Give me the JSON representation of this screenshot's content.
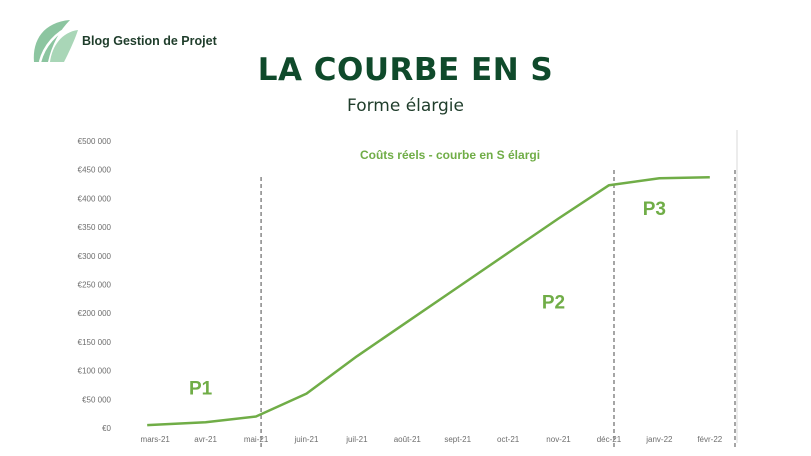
{
  "brand": {
    "name": "Blog Gestion de Projet",
    "logo_icon": "leaf-logo-icon",
    "color": "#8cc5a0"
  },
  "header": {
    "title": "LA COURBE EN S",
    "subtitle": "Forme élargie"
  },
  "colors": {
    "line": "#70ad47",
    "title": "#0f4a2b",
    "axis_text": "#6d6d6d",
    "divider": "#7f7f7f"
  },
  "chart_data": {
    "type": "line",
    "title": "Coûts réels - courbe en S élargi",
    "categories": [
      "mars-21",
      "avr-21",
      "mai-21",
      "juin-21",
      "juil-21",
      "août-21",
      "sept-21",
      "oct-21",
      "nov-21",
      "déc-21",
      "janv-22",
      "févr-22"
    ],
    "series": [
      {
        "values": [
          5000,
          10000,
          20000,
          60000,
          125000,
          185000,
          245000,
          305000,
          365000,
          423000,
          435000,
          437000
        ]
      }
    ],
    "y_ticks": [
      "€0",
      "€50 000",
      "€100 000",
      "€150 000",
      "€200 000",
      "€250 000",
      "€300 000",
      "€350 000",
      "€400 000",
      "€450 000",
      "€500 000"
    ],
    "ylim": [
      0,
      500000
    ],
    "grid": false,
    "xlabel": "",
    "ylabel": "",
    "phase_dividers": [
      {
        "after_category": "mai-21",
        "offset": 0.1
      },
      {
        "after_category": "déc-21",
        "offset": 0.1
      },
      {
        "after_category": "févr-22",
        "offset": 0.5
      }
    ],
    "phase_labels": [
      {
        "label": "P1",
        "category": "avr-21",
        "y": 62000
      },
      {
        "label": "P2",
        "category": "nov-21",
        "y": 212000
      },
      {
        "label": "P3",
        "category": "janv-22",
        "y": 375000
      }
    ]
  }
}
